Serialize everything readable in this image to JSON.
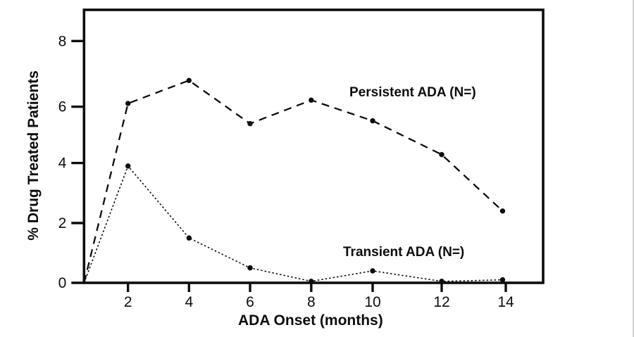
{
  "chart_data": {
    "type": "line",
    "title": "",
    "xlabel": "ADA Onset (months)",
    "ylabel": "% Drug Treated Patients",
    "xlim": [
      0.5,
      15.1
    ],
    "ylim": [
      0,
      9
    ],
    "xticks": [
      2,
      4,
      6,
      8,
      10,
      12,
      14
    ],
    "yticks": [
      0,
      2,
      4,
      6,
      8
    ],
    "grid": false,
    "legend_position": "inline-annotations",
    "background_color": "#ffffff",
    "line_color": "#0d0d0d",
    "marker": "filled-circle",
    "x": [
      0.56,
      2,
      4,
      6,
      8,
      10,
      12,
      13.9
    ],
    "series": [
      {
        "name": "Persistent ADA (N=)",
        "dash_style": "long-dash",
        "values": [
          0,
          6.1,
          6.8,
          5.4,
          6.2,
          5.5,
          4.3,
          2.4
        ]
      },
      {
        "name": "Transient ADA (N=)",
        "dash_style": "fine-dot",
        "values": [
          0,
          3.9,
          1.5,
          0.5,
          0.05,
          0.4,
          0.05,
          0.1
        ]
      }
    ]
  }
}
